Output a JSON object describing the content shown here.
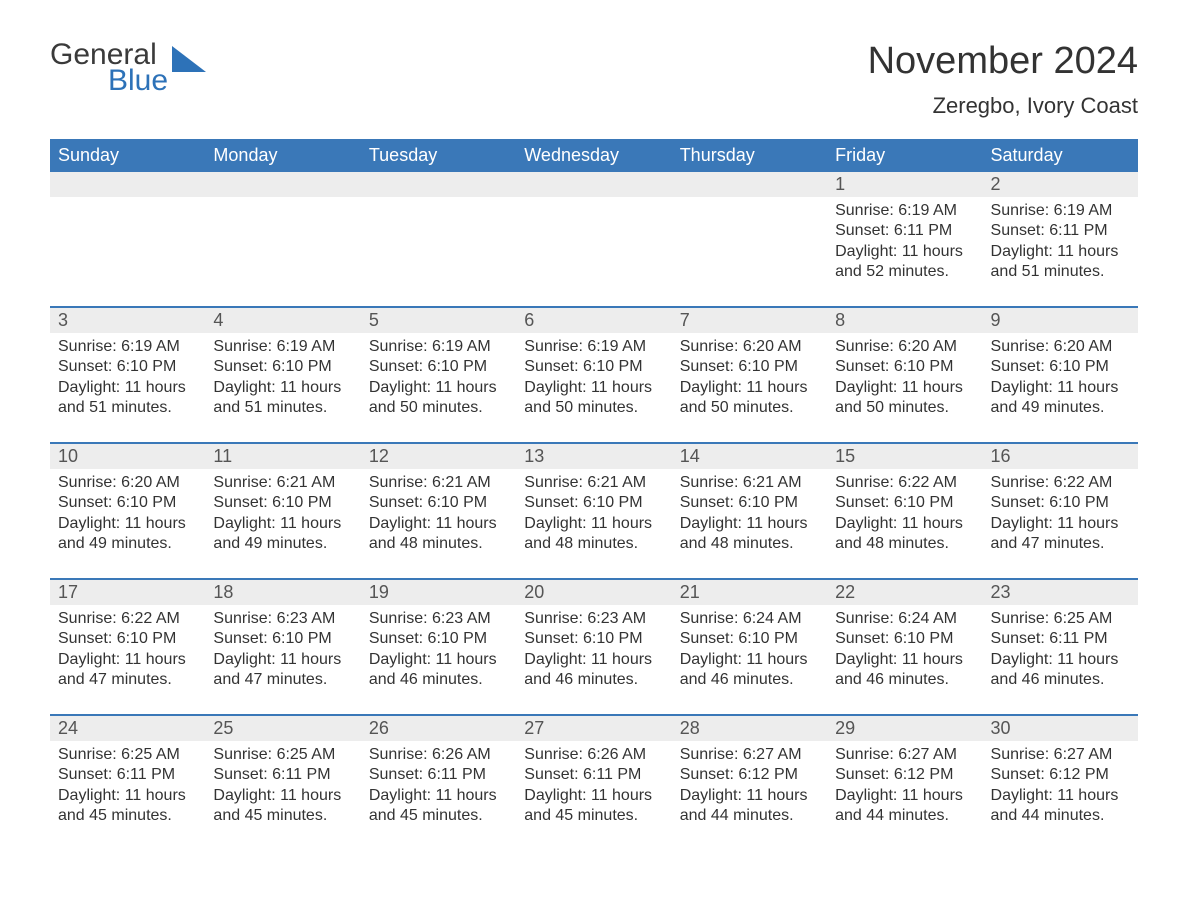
{
  "logo": {
    "word1": "General",
    "word2": "Blue",
    "shape_color": "#2d72b8",
    "text_color": "#3a3a3a"
  },
  "title": "November 2024",
  "location": "Zeregbo, Ivory Coast",
  "colors": {
    "header_bg": "#3a78b8",
    "header_text": "#ffffff",
    "daynum_bg": "#ededed",
    "row_divider": "#3a78b8",
    "body_text": "#333333",
    "background": "#ffffff"
  },
  "typography": {
    "title_fontsize": 38,
    "location_fontsize": 22,
    "dayname_fontsize": 18,
    "daynum_fontsize": 18,
    "cell_fontsize": 16
  },
  "day_names": [
    "Sunday",
    "Monday",
    "Tuesday",
    "Wednesday",
    "Thursday",
    "Friday",
    "Saturday"
  ],
  "labels": {
    "sunrise": "Sunrise:",
    "sunset": "Sunset:",
    "daylight": "Daylight:"
  },
  "weeks": [
    [
      null,
      null,
      null,
      null,
      null,
      {
        "n": "1",
        "sunrise": "6:19 AM",
        "sunset": "6:11 PM",
        "daylight": "11 hours and 52 minutes."
      },
      {
        "n": "2",
        "sunrise": "6:19 AM",
        "sunset": "6:11 PM",
        "daylight": "11 hours and 51 minutes."
      }
    ],
    [
      {
        "n": "3",
        "sunrise": "6:19 AM",
        "sunset": "6:10 PM",
        "daylight": "11 hours and 51 minutes."
      },
      {
        "n": "4",
        "sunrise": "6:19 AM",
        "sunset": "6:10 PM",
        "daylight": "11 hours and 51 minutes."
      },
      {
        "n": "5",
        "sunrise": "6:19 AM",
        "sunset": "6:10 PM",
        "daylight": "11 hours and 50 minutes."
      },
      {
        "n": "6",
        "sunrise": "6:19 AM",
        "sunset": "6:10 PM",
        "daylight": "11 hours and 50 minutes."
      },
      {
        "n": "7",
        "sunrise": "6:20 AM",
        "sunset": "6:10 PM",
        "daylight": "11 hours and 50 minutes."
      },
      {
        "n": "8",
        "sunrise": "6:20 AM",
        "sunset": "6:10 PM",
        "daylight": "11 hours and 50 minutes."
      },
      {
        "n": "9",
        "sunrise": "6:20 AM",
        "sunset": "6:10 PM",
        "daylight": "11 hours and 49 minutes."
      }
    ],
    [
      {
        "n": "10",
        "sunrise": "6:20 AM",
        "sunset": "6:10 PM",
        "daylight": "11 hours and 49 minutes."
      },
      {
        "n": "11",
        "sunrise": "6:21 AM",
        "sunset": "6:10 PM",
        "daylight": "11 hours and 49 minutes."
      },
      {
        "n": "12",
        "sunrise": "6:21 AM",
        "sunset": "6:10 PM",
        "daylight": "11 hours and 48 minutes."
      },
      {
        "n": "13",
        "sunrise": "6:21 AM",
        "sunset": "6:10 PM",
        "daylight": "11 hours and 48 minutes."
      },
      {
        "n": "14",
        "sunrise": "6:21 AM",
        "sunset": "6:10 PM",
        "daylight": "11 hours and 48 minutes."
      },
      {
        "n": "15",
        "sunrise": "6:22 AM",
        "sunset": "6:10 PM",
        "daylight": "11 hours and 48 minutes."
      },
      {
        "n": "16",
        "sunrise": "6:22 AM",
        "sunset": "6:10 PM",
        "daylight": "11 hours and 47 minutes."
      }
    ],
    [
      {
        "n": "17",
        "sunrise": "6:22 AM",
        "sunset": "6:10 PM",
        "daylight": "11 hours and 47 minutes."
      },
      {
        "n": "18",
        "sunrise": "6:23 AM",
        "sunset": "6:10 PM",
        "daylight": "11 hours and 47 minutes."
      },
      {
        "n": "19",
        "sunrise": "6:23 AM",
        "sunset": "6:10 PM",
        "daylight": "11 hours and 46 minutes."
      },
      {
        "n": "20",
        "sunrise": "6:23 AM",
        "sunset": "6:10 PM",
        "daylight": "11 hours and 46 minutes."
      },
      {
        "n": "21",
        "sunrise": "6:24 AM",
        "sunset": "6:10 PM",
        "daylight": "11 hours and 46 minutes."
      },
      {
        "n": "22",
        "sunrise": "6:24 AM",
        "sunset": "6:10 PM",
        "daylight": "11 hours and 46 minutes."
      },
      {
        "n": "23",
        "sunrise": "6:25 AM",
        "sunset": "6:11 PM",
        "daylight": "11 hours and 46 minutes."
      }
    ],
    [
      {
        "n": "24",
        "sunrise": "6:25 AM",
        "sunset": "6:11 PM",
        "daylight": "11 hours and 45 minutes."
      },
      {
        "n": "25",
        "sunrise": "6:25 AM",
        "sunset": "6:11 PM",
        "daylight": "11 hours and 45 minutes."
      },
      {
        "n": "26",
        "sunrise": "6:26 AM",
        "sunset": "6:11 PM",
        "daylight": "11 hours and 45 minutes."
      },
      {
        "n": "27",
        "sunrise": "6:26 AM",
        "sunset": "6:11 PM",
        "daylight": "11 hours and 45 minutes."
      },
      {
        "n": "28",
        "sunrise": "6:27 AM",
        "sunset": "6:12 PM",
        "daylight": "11 hours and 44 minutes."
      },
      {
        "n": "29",
        "sunrise": "6:27 AM",
        "sunset": "6:12 PM",
        "daylight": "11 hours and 44 minutes."
      },
      {
        "n": "30",
        "sunrise": "6:27 AM",
        "sunset": "6:12 PM",
        "daylight": "11 hours and 44 minutes."
      }
    ]
  ]
}
